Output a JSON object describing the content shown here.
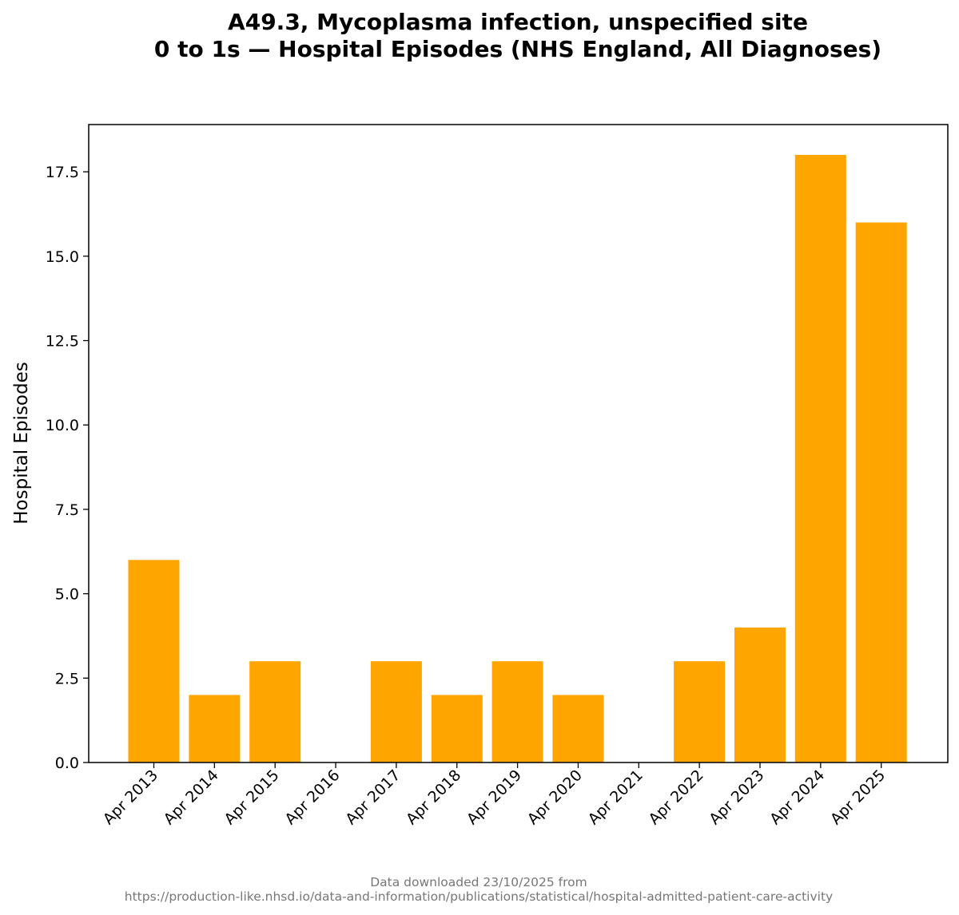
{
  "colors": {
    "bar": "#FFA500",
    "axis": "#000000",
    "footer": "#777777"
  },
  "chart_data": {
    "type": "bar",
    "title": "A49.3,  Mycoplasma infection, unspecified site",
    "subtitle": "0 to 1s — Hospital Episodes (NHS England, All Diagnoses)",
    "xlabel": "",
    "ylabel": "Hospital Episodes",
    "ylim": [
      0,
      18.9
    ],
    "yticks": [
      0,
      2.5,
      5,
      7.5,
      10,
      12.5,
      15,
      17.5
    ],
    "ytick_labels": [
      "0.0",
      "2.5",
      "5.0",
      "7.5",
      "10.0",
      "12.5",
      "15.0",
      "17.5"
    ],
    "categories": [
      "Apr 2013",
      "Apr 2014",
      "Apr 2015",
      "Apr 2016",
      "Apr 2017",
      "Apr 2018",
      "Apr 2019",
      "Apr 2020",
      "Apr 2021",
      "Apr 2022",
      "Apr 2023",
      "Apr 2024",
      "Apr 2025"
    ],
    "values": [
      6,
      2,
      3,
      0,
      3,
      2,
      3,
      2,
      0,
      3,
      4,
      18,
      16
    ],
    "grid": false,
    "legend": "none"
  },
  "footer": {
    "line1": "Data downloaded 23/10/2025 from",
    "line2": "https://production-like.nhsd.io/data-and-information/publications/statistical/hospital-admitted-patient-care-activity"
  }
}
